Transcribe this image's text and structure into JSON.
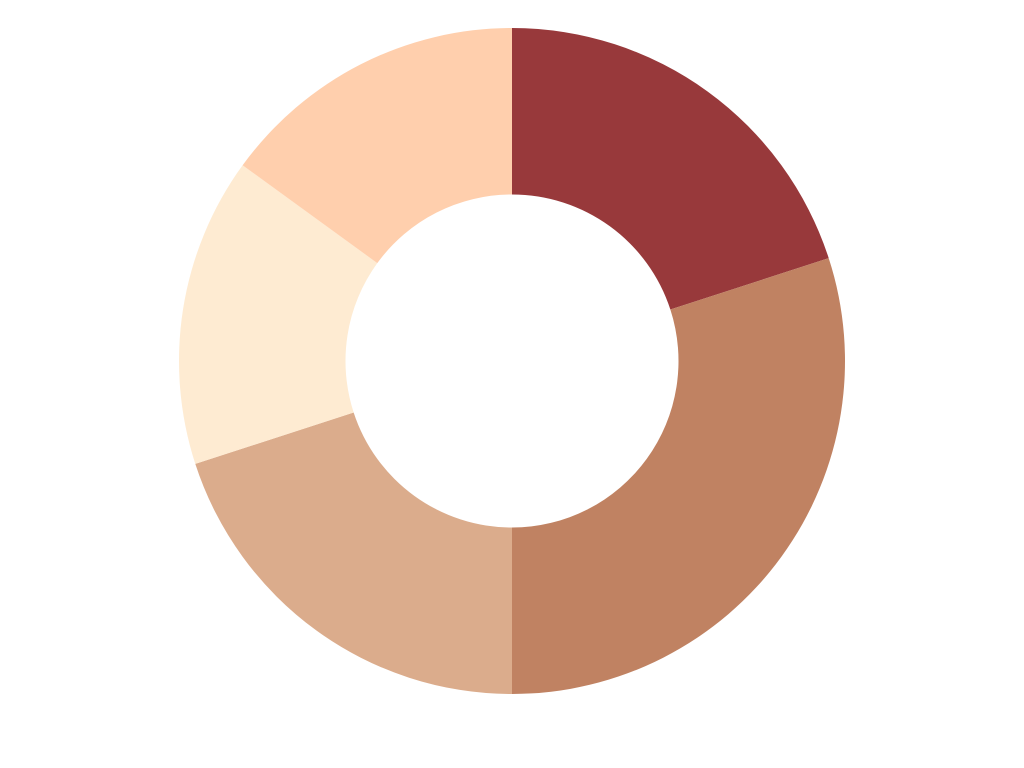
{
  "chart_data": {
    "type": "pie",
    "style": "donut",
    "title": "",
    "start_angle": "top",
    "direction": "clockwise",
    "legend": "none",
    "grid": false,
    "inner_radius_ratio": 0.5,
    "slices": [
      {
        "value": 20,
        "color": "#98393B"
      },
      {
        "value": 30,
        "color": "#C08262"
      },
      {
        "value": 20,
        "color": "#DBAC8C"
      },
      {
        "value": 15,
        "color": "#FEEBD2"
      },
      {
        "value": 15,
        "color": "#FFCFAD"
      }
    ]
  }
}
